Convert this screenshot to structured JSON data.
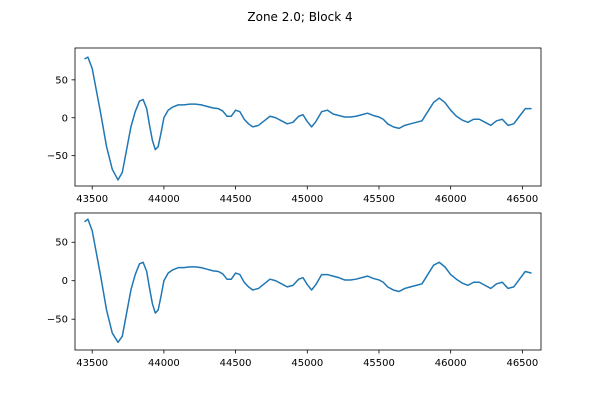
{
  "figure": {
    "suptitle": "Zone 2.0; Block 4"
  },
  "chart_data": [
    {
      "type": "line",
      "title": "",
      "xlabel": "",
      "ylabel": "",
      "xlim": [
        43380,
        46630
      ],
      "ylim": [
        -90,
        92
      ],
      "xticks": [
        43500,
        44000,
        44500,
        45000,
        45500,
        46000,
        46500
      ],
      "yticks": [
        -50,
        0,
        50
      ],
      "color": "#1f77b4",
      "grid": false,
      "series": [
        {
          "x": [
            43450,
            43470,
            43500,
            43530,
            43560,
            43600,
            43640,
            43680,
            43710,
            43740,
            43770,
            43800,
            43830,
            43855,
            43880,
            43900,
            43920,
            43940,
            43960,
            43980,
            44000,
            44030,
            44060,
            44100,
            44140,
            44180,
            44220,
            44260,
            44300,
            44340,
            44380,
            44410,
            44440,
            44470,
            44500,
            44530,
            44560,
            44590,
            44620,
            44660,
            44700,
            44740,
            44780,
            44820,
            44860,
            44900,
            44940,
            44970,
            45000,
            45030,
            45060,
            45100,
            45140,
            45180,
            45220,
            45260,
            45300,
            45340,
            45380,
            45420,
            45460,
            45500,
            45530,
            45560,
            45600,
            45640,
            45680,
            45720,
            45760,
            45800,
            45840,
            45880,
            45920,
            45960,
            46000,
            46040,
            46080,
            46120,
            46160,
            46200,
            46240,
            46280,
            46320,
            46360,
            46400,
            46440,
            46480,
            46520,
            46560
          ],
          "y": [
            78,
            80,
            65,
            35,
            5,
            -38,
            -68,
            -82,
            -72,
            -42,
            -12,
            8,
            22,
            24,
            12,
            -10,
            -30,
            -42,
            -38,
            -20,
            0,
            10,
            14,
            17,
            17,
            18,
            18,
            17,
            15,
            13,
            12,
            9,
            2,
            2,
            10,
            8,
            -2,
            -8,
            -12,
            -10,
            -4,
            2,
            0,
            -4,
            -8,
            -6,
            2,
            4,
            -5,
            -12,
            -5,
            8,
            10,
            5,
            3,
            1,
            1,
            2,
            4,
            6,
            3,
            1,
            -2,
            -8,
            -12,
            -14,
            -10,
            -8,
            -6,
            -4,
            8,
            20,
            26,
            20,
            10,
            2,
            -3,
            -6,
            -2,
            -2,
            -6,
            -10,
            -4,
            -2,
            -10,
            -8,
            2,
            12,
            12
          ]
        }
      ]
    },
    {
      "type": "line",
      "title": "",
      "xlabel": "",
      "ylabel": "",
      "xlim": [
        43380,
        46630
      ],
      "ylim": [
        -90,
        88
      ],
      "xticks": [
        43500,
        44000,
        44500,
        45000,
        45500,
        46000,
        46500
      ],
      "yticks": [
        -50,
        0,
        50
      ],
      "color": "#1f77b4",
      "grid": false,
      "series": [
        {
          "x": [
            43450,
            43470,
            43500,
            43530,
            43560,
            43600,
            43640,
            43680,
            43710,
            43740,
            43770,
            43800,
            43830,
            43855,
            43880,
            43900,
            43920,
            43940,
            43960,
            43980,
            44000,
            44030,
            44060,
            44100,
            44140,
            44180,
            44220,
            44260,
            44300,
            44340,
            44380,
            44410,
            44440,
            44470,
            44500,
            44530,
            44560,
            44590,
            44620,
            44660,
            44700,
            44740,
            44780,
            44820,
            44860,
            44900,
            44940,
            44970,
            45000,
            45030,
            45060,
            45100,
            45140,
            45180,
            45220,
            45260,
            45300,
            45340,
            45380,
            45420,
            45460,
            45500,
            45530,
            45560,
            45600,
            45640,
            45680,
            45720,
            45760,
            45800,
            45840,
            45880,
            45920,
            45960,
            46000,
            46040,
            46080,
            46120,
            46160,
            46200,
            46240,
            46280,
            46320,
            46360,
            46400,
            46440,
            46480,
            46520,
            46560
          ],
          "y": [
            77,
            80,
            65,
            35,
            5,
            -38,
            -68,
            -80,
            -72,
            -42,
            -12,
            8,
            22,
            24,
            12,
            -10,
            -30,
            -42,
            -38,
            -20,
            0,
            10,
            14,
            17,
            17,
            18,
            18,
            17,
            15,
            13,
            12,
            9,
            2,
            2,
            10,
            8,
            -2,
            -8,
            -12,
            -10,
            -4,
            2,
            0,
            -4,
            -8,
            -6,
            2,
            4,
            -5,
            -12,
            -5,
            8,
            8,
            6,
            4,
            1,
            1,
            2,
            4,
            6,
            3,
            1,
            -2,
            -8,
            -12,
            -14,
            -10,
            -8,
            -6,
            -4,
            8,
            20,
            24,
            18,
            8,
            2,
            -3,
            -6,
            -2,
            -2,
            -6,
            -10,
            -4,
            -2,
            -10,
            -8,
            2,
            12,
            10
          ]
        }
      ]
    }
  ]
}
